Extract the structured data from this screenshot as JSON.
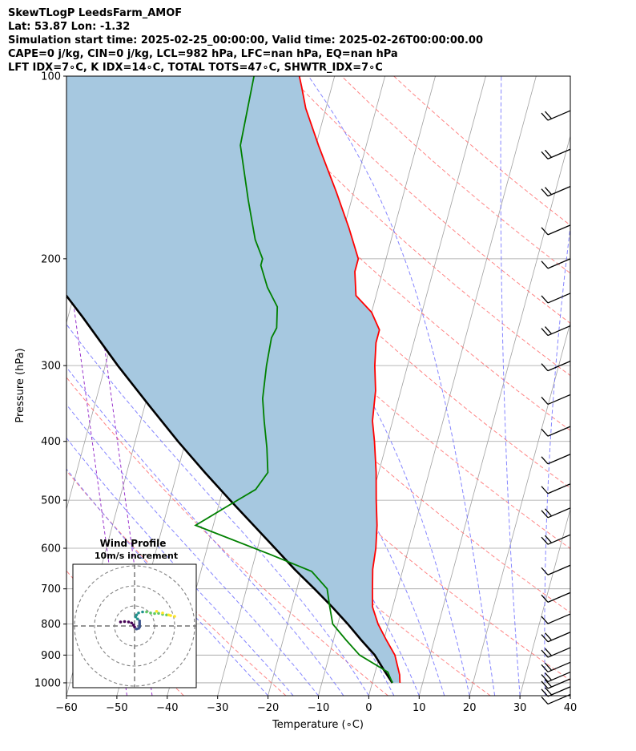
{
  "header": {
    "line1": "SkewTLogP LeedsFarm_AMOF",
    "line2": "Lat: 53.87   Lon: -1.32",
    "line3": "Simulation start time: 2025-02-25_00:00:00, Valid time: 2025-02-26T00:00:00.00",
    "line4": "CAPE=0 j/kg, CIN=0 j/kg, LCL=982 hPa, LFC=nan hPa, EQ=nan hPa",
    "line5": "LFT IDX=7∘C, K IDX=14∘C, TOTAL TOTS=47∘C, SHWTR_IDX=7∘C"
  },
  "chart_data": [
    {
      "type": "line",
      "subtype": "skew-t log-p",
      "xlabel": "Temperature (∘C)",
      "ylabel": "Pressure (hPa)",
      "xlim": [
        -60,
        40
      ],
      "ylim": [
        1050,
        100
      ],
      "y_scale": "log",
      "x_ticks": [
        "−60",
        "−50",
        "−40",
        "−30",
        "−20",
        "−10",
        "0",
        "10",
        "20",
        "30",
        "40"
      ],
      "y_ticks": [
        "100",
        "200",
        "300",
        "400",
        "500",
        "600",
        "700",
        "800",
        "900",
        "1000"
      ],
      "grid": true,
      "colors": {
        "temperature": "#ff0000",
        "dewpoint": "#008000",
        "parcel": "#000000",
        "cape_fill": "#a6c8e0",
        "dry_adiabats": "#ff6666",
        "moist_adiabats": "#6666ff",
        "mixing_ratio": "#9933cc",
        "isotherms": "#a0a0a0"
      },
      "series": [
        {
          "key": "temperature",
          "points": [
            [
              5.5,
              1000
            ],
            [
              5.0,
              970
            ],
            [
              3.0,
              900
            ],
            [
              0.5,
              850
            ],
            [
              -2.0,
              800
            ],
            [
              -4.0,
              750
            ],
            [
              -5.0,
              700
            ],
            [
              -6.0,
              650
            ],
            [
              -6.5,
              600
            ],
            [
              -7.5,
              550
            ],
            [
              -9.0,
              500
            ],
            [
              -10.5,
              450
            ],
            [
              -12.5,
              400
            ],
            [
              -14.0,
              370
            ],
            [
              -15.0,
              330
            ],
            [
              -16.5,
              300
            ],
            [
              -17.5,
              275
            ],
            [
              -17.5,
              262
            ],
            [
              -20.0,
              245
            ],
            [
              -24.0,
              230
            ],
            [
              -25.5,
              210
            ],
            [
              -25.5,
              200
            ],
            [
              -29.0,
              178
            ],
            [
              -33.5,
              155
            ],
            [
              -39.5,
              130
            ],
            [
              -44.0,
              113
            ],
            [
              -46.0,
              104
            ],
            [
              -47.0,
              100
            ]
          ]
        },
        {
          "key": "dewpoint",
          "points": [
            [
              4.0,
              1000
            ],
            [
              2.5,
              960
            ],
            [
              -4.0,
              900
            ],
            [
              -7.5,
              850
            ],
            [
              -11.0,
              800
            ],
            [
              -12.5,
              750
            ],
            [
              -14.0,
              700
            ],
            [
              -18.0,
              655
            ],
            [
              -27.0,
              615
            ],
            [
              -43.5,
              550
            ],
            [
              -38.0,
              510
            ],
            [
              -33.5,
              480
            ],
            [
              -32.0,
              450
            ],
            [
              -33.5,
              410
            ],
            [
              -35.5,
              370
            ],
            [
              -37.0,
              340
            ],
            [
              -38.0,
              300
            ],
            [
              -38.5,
              270
            ],
            [
              -38.0,
              260
            ],
            [
              -39.0,
              240
            ],
            [
              -42.0,
              223
            ],
            [
              -44.5,
              205
            ],
            [
              -44.5,
              200
            ],
            [
              -47.0,
              186
            ],
            [
              -50.5,
              160
            ],
            [
              -55.0,
              130
            ],
            [
              -56.0,
              100
            ]
          ]
        },
        {
          "key": "parcel",
          "points": [
            [
              4.0,
              1000
            ],
            [
              3.5,
              990
            ],
            [
              1.5,
              950
            ],
            [
              -1.0,
              900
            ],
            [
              -4.5,
              850
            ],
            [
              -8.0,
              800
            ],
            [
              -12.0,
              750
            ],
            [
              -16.5,
              700
            ],
            [
              -21.5,
              650
            ],
            [
              -26.5,
              600
            ],
            [
              -32.0,
              550
            ],
            [
              -38.0,
              500
            ],
            [
              -44.5,
              450
            ],
            [
              -51.5,
              400
            ],
            [
              -59.0,
              350
            ],
            [
              -67.5,
              300
            ],
            [
              -77.0,
              250
            ],
            [
              -89.0,
              200
            ],
            [
              -103.0,
              150
            ],
            [
              -122.0,
              100
            ]
          ]
        }
      ],
      "wind_barbs": [
        {
          "p": 1045,
          "barbs": 1
        },
        {
          "p": 1015,
          "barbs": 2
        },
        {
          "p": 985,
          "barbs": 2
        },
        {
          "p": 960,
          "barbs": 2
        },
        {
          "p": 925,
          "barbs": 2
        },
        {
          "p": 875,
          "barbs": 2
        },
        {
          "p": 825,
          "barbs": 2
        },
        {
          "p": 770,
          "barbs": 1
        },
        {
          "p": 710,
          "barbs": 1
        },
        {
          "p": 640,
          "barbs": 1
        },
        {
          "p": 570,
          "barbs": 2
        },
        {
          "p": 515,
          "barbs": 2
        },
        {
          "p": 470,
          "barbs": 1
        },
        {
          "p": 420,
          "barbs": 1
        },
        {
          "p": 378,
          "barbs": 1
        },
        {
          "p": 335,
          "barbs": 1
        },
        {
          "p": 295,
          "barbs": 1
        },
        {
          "p": 258,
          "barbs": 2
        },
        {
          "p": 228,
          "barbs": 1
        },
        {
          "p": 200,
          "barbs": 1
        },
        {
          "p": 176,
          "barbs": 1
        },
        {
          "p": 152,
          "barbs": 2
        },
        {
          "p": 132,
          "barbs": 2
        },
        {
          "p": 114,
          "barbs": 2
        }
      ]
    },
    {
      "type": "scatter",
      "subtype": "hodograph",
      "title": "Wind Profile",
      "subtitle": "10m/s increment",
      "rings": [
        10,
        20,
        30
      ],
      "colormap": [
        "#440154",
        "#3b528b",
        "#21918c",
        "#5ec962",
        "#fde725"
      ],
      "points": [
        [
          -7,
          2
        ],
        [
          -5,
          2.2
        ],
        [
          -3,
          2
        ],
        [
          -1.5,
          1.5
        ],
        [
          -0.5,
          0.5
        ],
        [
          0,
          -0.5
        ],
        [
          1,
          -1.5
        ],
        [
          2,
          -1.2
        ],
        [
          2.5,
          -0.5
        ],
        [
          2.5,
          0.5
        ],
        [
          2.5,
          1.5
        ],
        [
          2.5,
          2.5
        ],
        [
          1.5,
          3.5
        ],
        [
          0.5,
          4.5
        ],
        [
          1,
          5.5
        ],
        [
          2,
          6.5
        ],
        [
          4,
          7
        ],
        [
          6,
          7
        ],
        [
          8,
          6.5
        ],
        [
          10,
          6.2
        ],
        [
          12,
          6.3
        ],
        [
          14,
          5.8
        ],
        [
          16,
          5.5
        ],
        [
          18,
          5.2
        ],
        [
          20,
          4.8
        ],
        [
          17,
          5.5
        ],
        [
          14,
          6.5
        ],
        [
          11,
          7.3
        ]
      ]
    }
  ]
}
